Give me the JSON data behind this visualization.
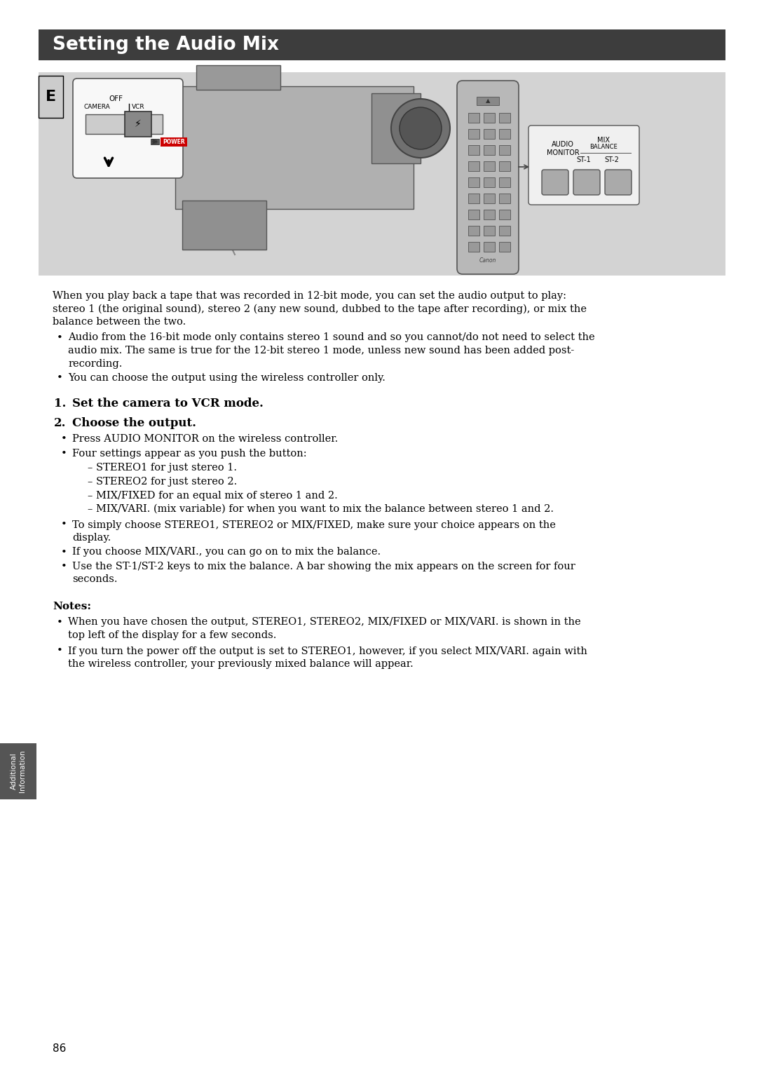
{
  "title": "Setting the Audio Mix",
  "title_bg_color": "#3d3d3d",
  "title_text_color": "#ffffff",
  "title_fontsize": 19,
  "page_bg_color": "#ffffff",
  "image_panel_bg": "#d3d3d3",
  "page_number": "86",
  "sidebar_label": "Additional\nInformation",
  "sidebar_bg": "#555555",
  "sidebar_text_color": "#ffffff",
  "e_label_bg": "#ffffff",
  "e_label_border": "#000000",
  "body_text_fontsize": 10.5,
  "bold_step_fontsize": 12,
  "notes_label_fontsize": 11,
  "body_text": "When you play back a tape that was recorded in 12-bit mode, you can set the audio output to play:\nstereo 1 (the original sound), stereo 2 (any new sound, dubbed to the tape after recording), or mix the\nbalance between the two.",
  "bullet1": "Audio from the 16-bit mode only contains stereo 1 sound and so you cannot/do not need to select the\naudio mix. The same is true for the 12-bit stereo 1 mode, unless new sound has been added post-\nrecording.",
  "bullet2": "You can choose the output using the wireless controller only.",
  "step1_num": "1.",
  "step1_text": "Set the camera to VCR mode.",
  "step2_num": "2.",
  "step2_text": "Choose the output.",
  "sub_bullet1": "Press AUDIO MONITOR on the wireless controller.",
  "sub_bullet2": "Four settings appear as you push the button:",
  "sub_sub1": "– STEREO1 for just stereo 1.",
  "sub_sub2": "– STEREO2 for just stereo 2.",
  "sub_sub3": "– MIX/FIXED for an equal mix of stereo 1 and 2.",
  "sub_sub4": "– MIX/VARI. (mix variable) for when you want to mix the balance between stereo 1 and 2.",
  "sub_bullet3": "To simply choose STEREO1, STEREO2 or MIX/FIXED, make sure your choice appears on the\ndisplay.",
  "sub_bullet4": "If you choose MIX/VARI., you can go on to mix the balance.",
  "sub_bullet5": "Use the ST-1/ST-2 keys to mix the balance. A bar showing the mix appears on the screen for four\nseconds.",
  "notes_header": "Notes:",
  "note1": "When you have chosen the output, STEREO1, STEREO2, MIX/FIXED or MIX/VARI. is shown in the\ntop left of the display for a few seconds.",
  "note2": "If you turn the power off the output is set to STEREO1, however, if you select MIX/VARI. again with\nthe wireless controller, your previously mixed balance will appear."
}
